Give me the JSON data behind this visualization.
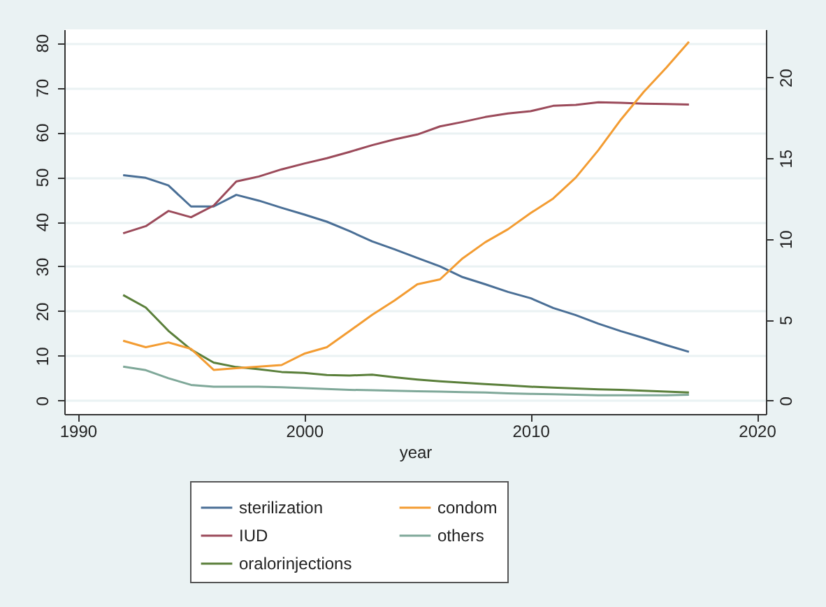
{
  "chart_data": {
    "type": "line",
    "xlabel": "year",
    "x": [
      1992,
      1993,
      1994,
      1995,
      1996,
      1997,
      1998,
      1999,
      2000,
      2001,
      2002,
      2003,
      2004,
      2005,
      2006,
      2007,
      2008,
      2009,
      2010,
      2011,
      2012,
      2013,
      2014,
      2015,
      2016,
      2017
    ],
    "series": [
      {
        "name": "sterilization",
        "color": "#4a6f96",
        "values": [
          50.4,
          49.8,
          48.1,
          43.4,
          43.4,
          46.0,
          44.7,
          43.1,
          41.6,
          40.0,
          37.9,
          35.6,
          33.8,
          31.9,
          30.0,
          27.6,
          26.0,
          24.3,
          22.9,
          20.7,
          19.1,
          17.2,
          15.5,
          14.0,
          12.4,
          10.9
        ]
      },
      {
        "name": "IUD",
        "color": "#9b4a5a",
        "values": [
          37.4,
          39.0,
          42.4,
          41.0,
          43.6,
          49.0,
          50.1,
          51.7,
          53.0,
          54.2,
          55.6,
          57.1,
          58.4,
          59.5,
          61.3,
          62.3,
          63.4,
          64.2,
          64.7,
          65.9,
          66.1,
          66.7,
          66.6,
          66.4,
          66.3,
          66.2
        ]
      },
      {
        "name": "oralorinjections",
        "color": "#5a7f3a",
        "values": [
          23.6,
          20.8,
          15.6,
          11.4,
          8.5,
          7.5,
          7.0,
          6.4,
          6.2,
          5.7,
          5.6,
          5.8,
          5.2,
          4.7,
          4.3,
          4.0,
          3.7,
          3.4,
          3.1,
          2.9,
          2.7,
          2.5,
          2.4,
          2.2,
          2.0,
          1.8
        ]
      },
      {
        "name": "condom",
        "color": "#f39c32",
        "axis": "y2",
        "values": [
          3.7,
          3.3,
          3.6,
          3.2,
          1.9,
          2.0,
          2.1,
          2.2,
          2.9,
          3.3,
          4.3,
          5.3,
          6.2,
          7.2,
          7.5,
          8.8,
          9.8,
          10.6,
          11.6,
          12.5,
          13.8,
          15.5,
          17.4,
          19.1,
          20.6,
          22.2
        ]
      },
      {
        "name": "others",
        "color": "#7fa899",
        "values": [
          7.6,
          6.8,
          5.0,
          3.5,
          3.1,
          3.1,
          3.1,
          3.0,
          2.8,
          2.6,
          2.4,
          2.3,
          2.2,
          2.1,
          2.0,
          1.9,
          1.8,
          1.6,
          1.5,
          1.4,
          1.3,
          1.2,
          1.2,
          1.2,
          1.2,
          1.3
        ]
      }
    ],
    "xlim": [
      1989.4,
      2020.4
    ],
    "xticks": [
      1990,
      2000,
      2010,
      2020
    ],
    "ylim": [
      -3,
      83
    ],
    "yticks": [
      0,
      10,
      20,
      30,
      40,
      50,
      60,
      70,
      80
    ],
    "y2lim": [
      -0.83,
      22.97
    ],
    "y2ticks": [
      0,
      5,
      10,
      15,
      20
    ],
    "grid": "y",
    "legend": "bottom"
  }
}
